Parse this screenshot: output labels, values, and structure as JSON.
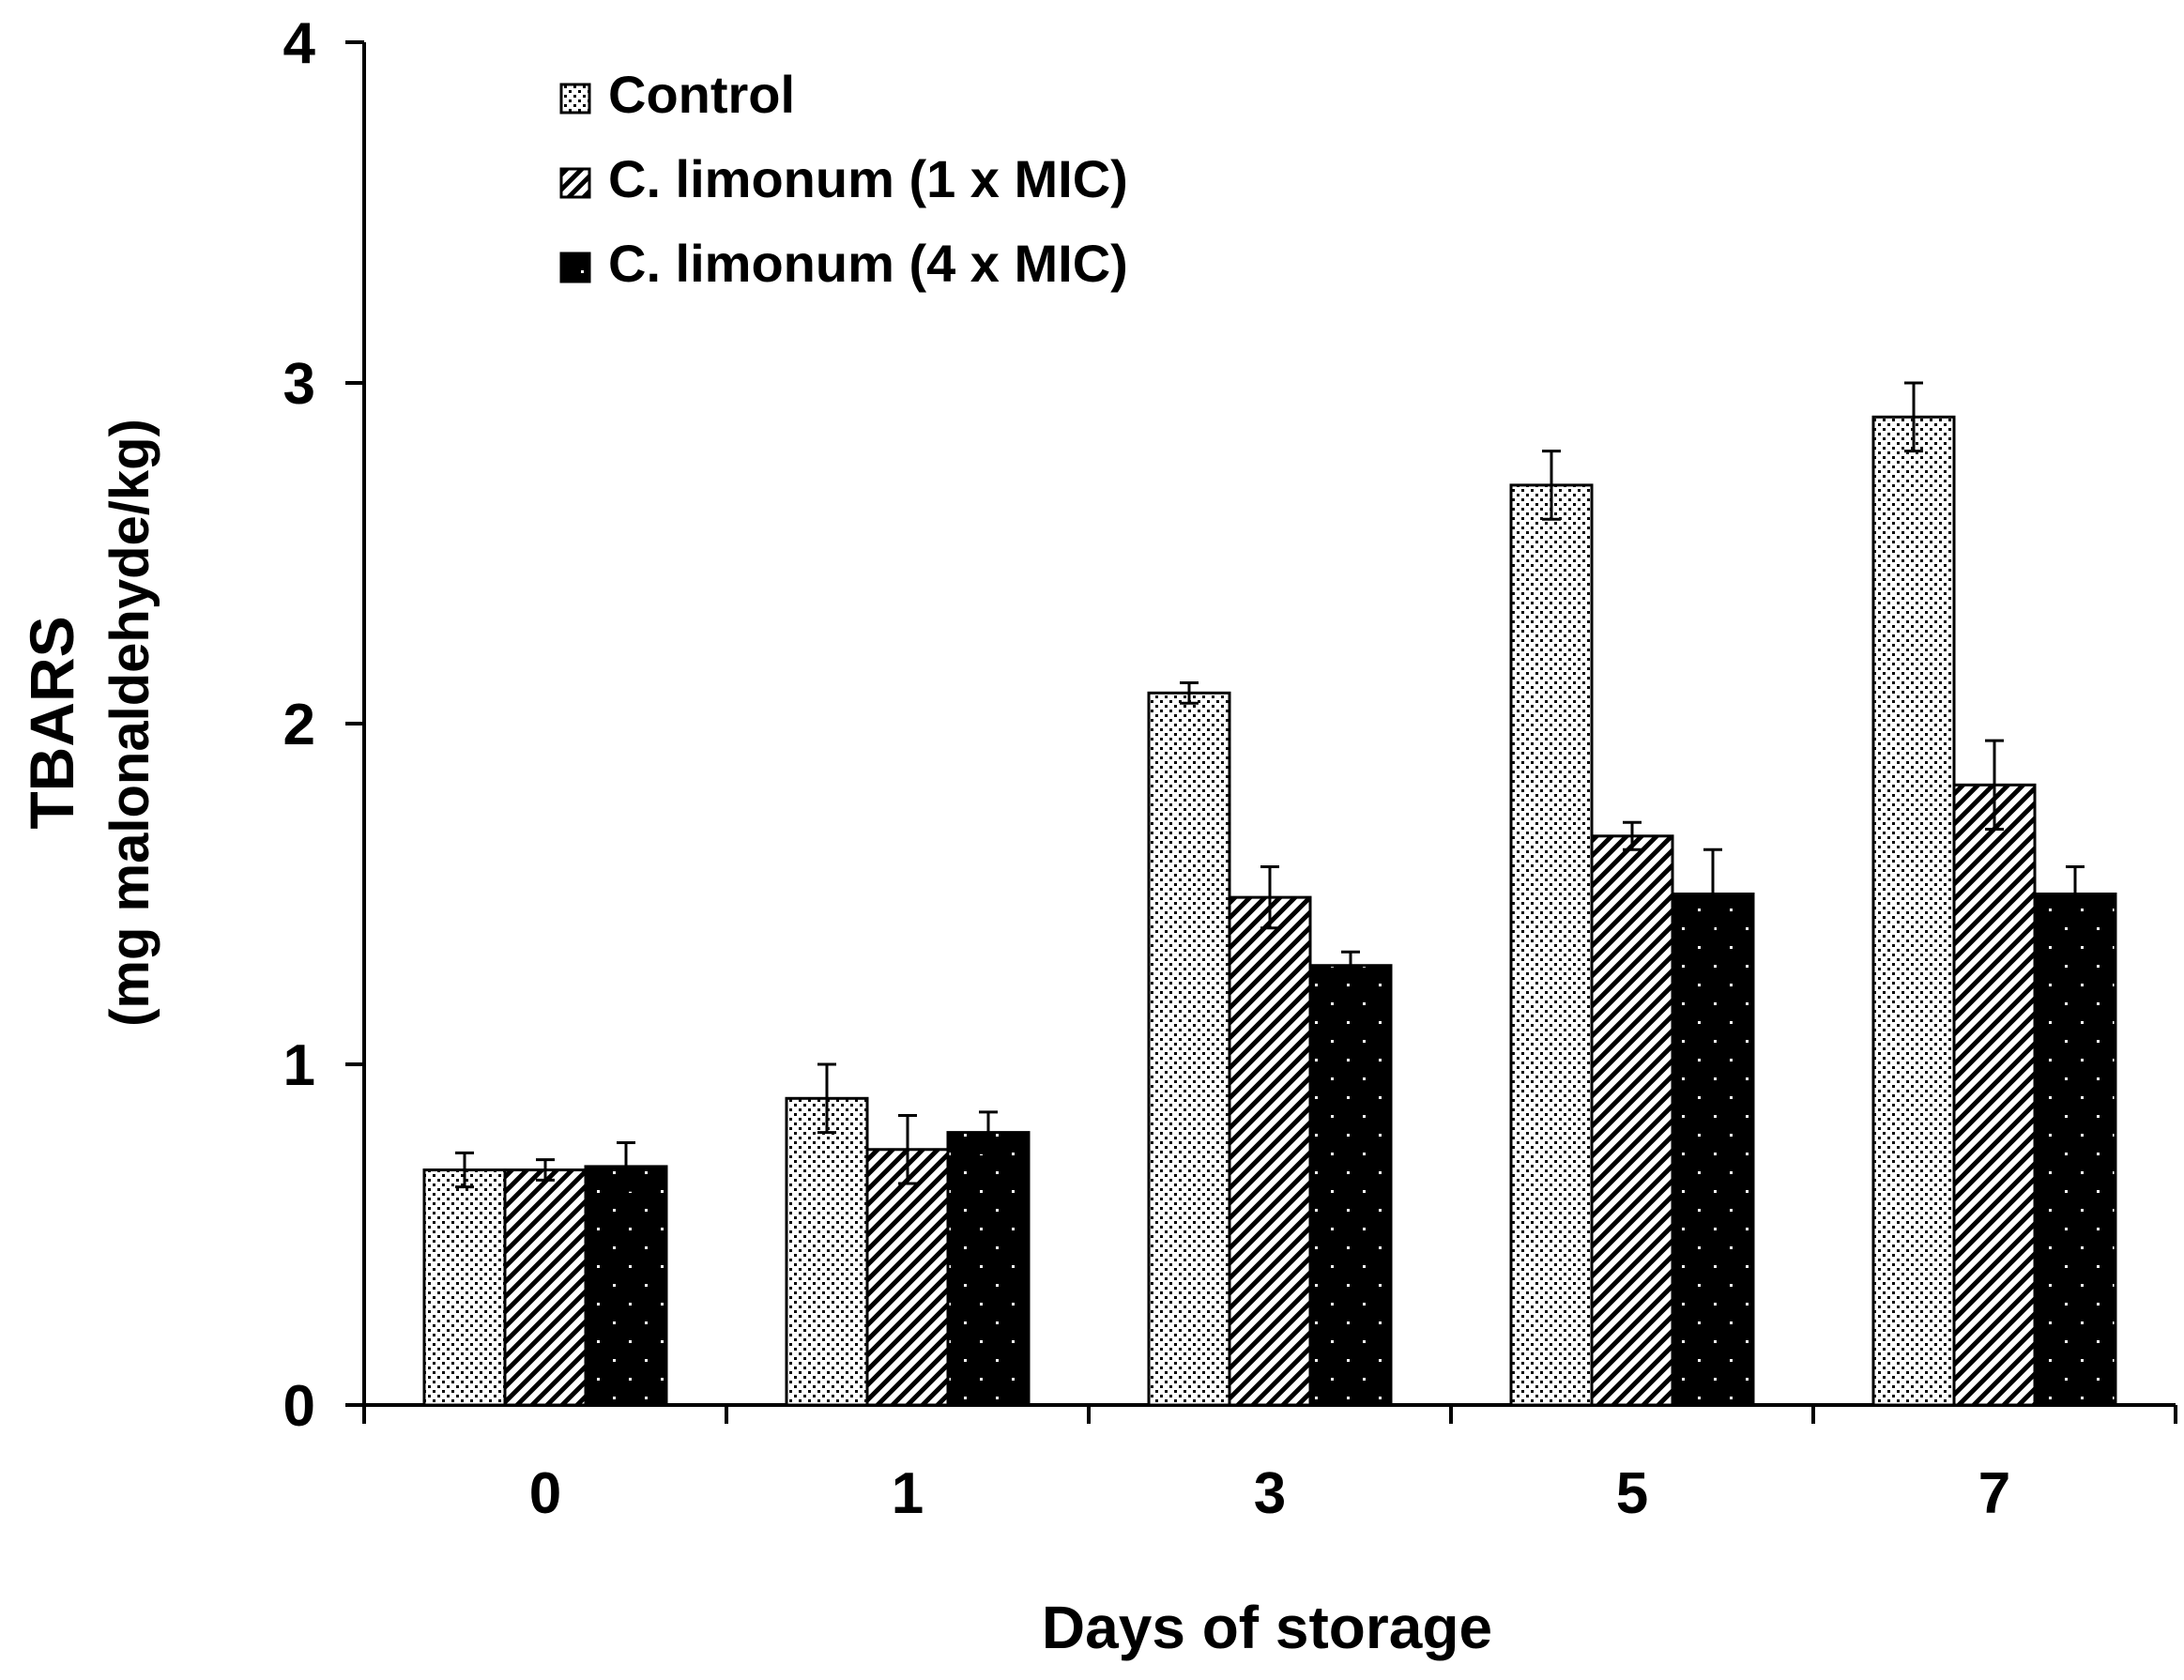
{
  "chart_data": {
    "type": "bar",
    "title": "",
    "xlabel": "Days of storage",
    "ylabel": [
      "TBARS",
      "(mg malonaldehyde/kg)"
    ],
    "categories": [
      "0",
      "1",
      "3",
      "5",
      "7"
    ],
    "ylim": [
      0,
      4
    ],
    "yticks": [
      "0",
      "1",
      "2",
      "3",
      "4"
    ],
    "grid": false,
    "legend_position": "top-left",
    "series": [
      {
        "name": "Control",
        "pattern": "dots-fine",
        "values": [
          0.69,
          0.9,
          2.09,
          2.7,
          2.9
        ],
        "errors": [
          0.05,
          0.1,
          0.03,
          0.1,
          0.1
        ]
      },
      {
        "name": "C. limonum (1 x MIC)",
        "pattern": "diagonal-hatch",
        "values": [
          0.69,
          0.75,
          1.49,
          1.67,
          1.82
        ],
        "errors": [
          0.03,
          0.1,
          0.09,
          0.04,
          0.13
        ]
      },
      {
        "name": "C. limonum (4 x MIC)",
        "pattern": "black-dotted",
        "values": [
          0.7,
          0.8,
          1.29,
          1.5,
          1.5
        ],
        "errors": [
          0.07,
          0.06,
          0.04,
          0.13,
          0.08
        ]
      }
    ]
  }
}
